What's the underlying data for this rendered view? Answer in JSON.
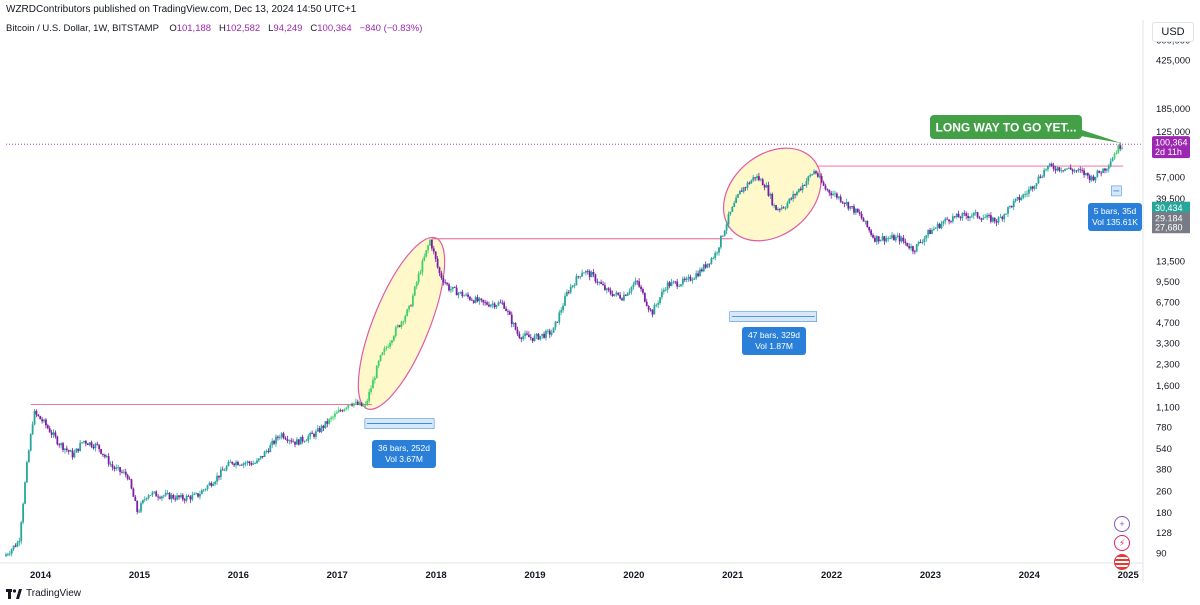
{
  "header": {
    "publisher": "WZRDContributors published on TradingView.com, Dec 13, 2024 14:50 UTC+1"
  },
  "legend": {
    "symbol": "Bitcoin / U.S. Dollar, 1W, BITSTAMP",
    "open_label": "O",
    "open": "101,188",
    "high_label": "H",
    "high": "102,582",
    "low_label": "L",
    "low": "94,249",
    "close_label": "C",
    "close": "100,364",
    "change": "−840 (−0.83%)"
  },
  "currency": "USD",
  "footer": {
    "brand": "TradingView"
  },
  "side_icons": [
    "plus-circle-icon",
    "bolt-icon",
    "flag-icon"
  ],
  "colors": {
    "up": "#26a69a",
    "up_bright": "#3fcf6a",
    "down": "#7b1fa2",
    "price_tag": "#9c27b0",
    "resistance": "#f06292",
    "highlight_fill": "#fff7c2",
    "measure": "#2a7fd9",
    "callout": "#43a047"
  },
  "chart_data": {
    "type": "candlestick",
    "title": "Bitcoin / U.S. Dollar, 1W, BITSTAMP",
    "y_scale": "log",
    "ylim": [
      80,
      600000
    ],
    "y_ticks": [
      {
        "value": 600000,
        "label": "600,000"
      },
      {
        "value": 425000,
        "label": "425,000"
      },
      {
        "value": 185000,
        "label": "185,000"
      },
      {
        "value": 125000,
        "label": "125,000"
      },
      {
        "value": 57000,
        "label": "57,000"
      },
      {
        "value": 39500,
        "label": "39,500"
      },
      {
        "value": 13500,
        "label": "13,500"
      },
      {
        "value": 9500,
        "label": "9,500"
      },
      {
        "value": 6700,
        "label": "6,700"
      },
      {
        "value": 4700,
        "label": "4,700"
      },
      {
        "value": 3300,
        "label": "3,300"
      },
      {
        "value": 2300,
        "label": "2,300"
      },
      {
        "value": 1600,
        "label": "1,600"
      },
      {
        "value": 1100,
        "label": "1,100"
      },
      {
        "value": 780,
        "label": "780"
      },
      {
        "value": 540,
        "label": "540"
      },
      {
        "value": 380,
        "label": "380"
      },
      {
        "value": 260,
        "label": "260"
      },
      {
        "value": 180,
        "label": "180"
      },
      {
        "value": 128,
        "label": "128"
      },
      {
        "value": 90,
        "label": "90"
      }
    ],
    "x_range": [
      2013.65,
      2025.15
    ],
    "x_ticks": [
      {
        "value": 2014,
        "label": "2014"
      },
      {
        "value": 2015,
        "label": "2015"
      },
      {
        "value": 2016,
        "label": "2016"
      },
      {
        "value": 2017,
        "label": "2017"
      },
      {
        "value": 2018,
        "label": "2018"
      },
      {
        "value": 2019,
        "label": "2019"
      },
      {
        "value": 2020,
        "label": "2020"
      },
      {
        "value": 2021,
        "label": "2021"
      },
      {
        "value": 2022,
        "label": "2022"
      },
      {
        "value": 2023,
        "label": "2023"
      },
      {
        "value": 2024,
        "label": "2024"
      },
      {
        "value": 2025,
        "label": "2025"
      }
    ],
    "price_path": [
      [
        2013.65,
        85
      ],
      [
        2013.8,
        110
      ],
      [
        2013.88,
        400
      ],
      [
        2013.95,
        1000
      ],
      [
        2014.05,
        850
      ],
      [
        2014.2,
        600
      ],
      [
        2014.35,
        480
      ],
      [
        2014.45,
        620
      ],
      [
        2014.6,
        560
      ],
      [
        2014.75,
        390
      ],
      [
        2014.9,
        340
      ],
      [
        2015.0,
        180
      ],
      [
        2015.1,
        250
      ],
      [
        2015.3,
        240
      ],
      [
        2015.45,
        230
      ],
      [
        2015.6,
        240
      ],
      [
        2015.8,
        330
      ],
      [
        2015.95,
        430
      ],
      [
        2016.2,
        420
      ],
      [
        2016.45,
        700
      ],
      [
        2016.6,
        600
      ],
      [
        2016.8,
        700
      ],
      [
        2017.0,
        960
      ],
      [
        2017.15,
        1200
      ],
      [
        2017.3,
        1100
      ],
      [
        2017.45,
        2500
      ],
      [
        2017.6,
        4000
      ],
      [
        2017.75,
        6000
      ],
      [
        2017.85,
        11000
      ],
      [
        2017.96,
        19500
      ],
      [
        2018.05,
        11000
      ],
      [
        2018.15,
        8500
      ],
      [
        2018.3,
        7500
      ],
      [
        2018.5,
        6500
      ],
      [
        2018.7,
        6500
      ],
      [
        2018.85,
        3800
      ],
      [
        2019.0,
        3600
      ],
      [
        2019.2,
        4000
      ],
      [
        2019.35,
        8000
      ],
      [
        2019.5,
        11500
      ],
      [
        2019.6,
        10500
      ],
      [
        2019.75,
        8000
      ],
      [
        2019.9,
        7300
      ],
      [
        2020.05,
        9500
      ],
      [
        2020.2,
        5500
      ],
      [
        2020.35,
        9000
      ],
      [
        2020.55,
        9500
      ],
      [
        2020.7,
        11500
      ],
      [
        2020.85,
        15500
      ],
      [
        2020.98,
        29000
      ],
      [
        2021.1,
        45000
      ],
      [
        2021.25,
        58000
      ],
      [
        2021.35,
        50000
      ],
      [
        2021.45,
        33000
      ],
      [
        2021.55,
        35000
      ],
      [
        2021.7,
        47000
      ],
      [
        2021.85,
        64000
      ],
      [
        2021.95,
        47000
      ],
      [
        2022.1,
        40000
      ],
      [
        2022.3,
        30000
      ],
      [
        2022.45,
        20000
      ],
      [
        2022.7,
        20000
      ],
      [
        2022.85,
        16500
      ],
      [
        2023.0,
        22000
      ],
      [
        2023.2,
        28000
      ],
      [
        2023.45,
        30000
      ],
      [
        2023.7,
        27000
      ],
      [
        2023.85,
        36000
      ],
      [
        2024.0,
        44000
      ],
      [
        2024.2,
        68000
      ],
      [
        2024.4,
        66000
      ],
      [
        2024.55,
        62000
      ],
      [
        2024.65,
        56000
      ],
      [
        2024.8,
        68000
      ],
      [
        2024.9,
        90000
      ],
      [
        2024.95,
        100364
      ]
    ],
    "last_price": {
      "label": "100,364",
      "countdown": "2d 11h"
    },
    "right_scale_tags": [
      {
        "value": 30434,
        "label": "30,434",
        "color": "#26a69a"
      },
      {
        "value": 29184,
        "label": "29,184",
        "color": "#787b86"
      },
      {
        "value": 27680,
        "label": "27,680",
        "color": "#787b86"
      }
    ],
    "resistance_lines": [
      {
        "x0": 2013.9,
        "x1": 2017.35,
        "value": 1150
      },
      {
        "x0": 2017.96,
        "x1": 2021.0,
        "value": 19800
      },
      {
        "x0": 2021.85,
        "x1": 2024.95,
        "value": 69000
      }
    ],
    "highlight_ellipses": [
      {
        "x_center": 2017.65,
        "y_center": 4600,
        "label": ""
      },
      {
        "x_center": 2021.4,
        "y_center": 42000,
        "label": ""
      }
    ],
    "measures": [
      {
        "x0": 2017.28,
        "x1": 2017.98,
        "value": 830,
        "lines": [
          "36 bars, 252d",
          "Vol 3.67M"
        ]
      },
      {
        "x0": 2020.97,
        "x1": 2021.85,
        "value": 5200,
        "lines": [
          "47 bars, 329d",
          "Vol 1.87M"
        ]
      },
      {
        "x0": 2024.83,
        "x1": 2024.93,
        "value": 45000,
        "lines": [
          "5 bars, 35d",
          "Vol 135.61K"
        ]
      }
    ],
    "annotations": [
      {
        "text": "LONG WAY TO GO YET...",
        "target_x": 2024.95,
        "target_value": 100364
      }
    ]
  }
}
